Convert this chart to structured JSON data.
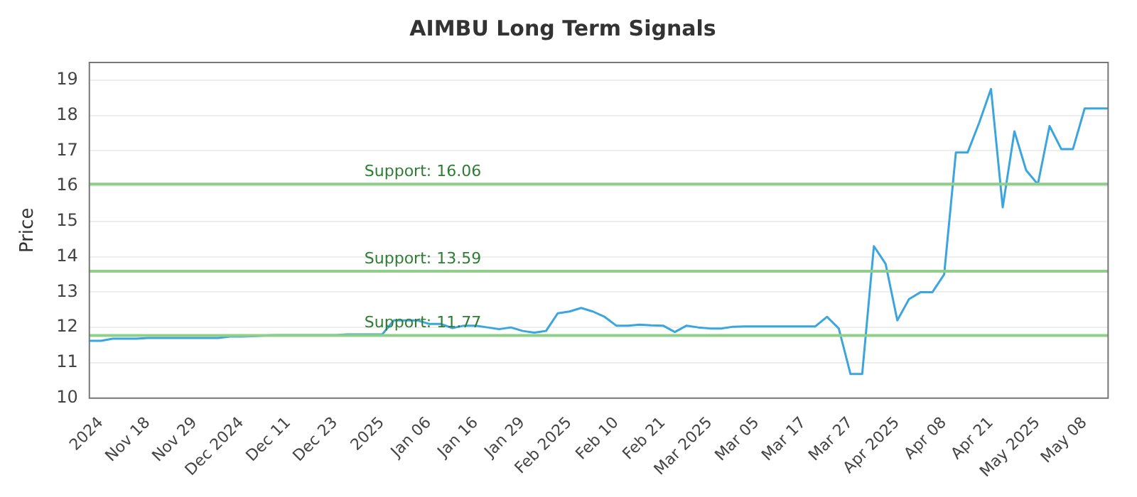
{
  "chart_data": {
    "type": "line",
    "title": "AIMBU Long Term Signals",
    "ylabel": "Price",
    "categories": [
      null,
      "2024",
      null,
      null,
      null,
      "Nov 18",
      null,
      null,
      null,
      "Nov 29",
      null,
      null,
      null,
      "Dec 2024",
      null,
      null,
      null,
      "Dec 11",
      null,
      null,
      null,
      "Dec 23",
      null,
      null,
      null,
      "2025",
      null,
      null,
      null,
      "Jan 06",
      null,
      null,
      null,
      "Jan 16",
      null,
      null,
      null,
      "Jan 29",
      null,
      null,
      null,
      "Feb 2025",
      null,
      null,
      null,
      "Feb 10",
      null,
      null,
      null,
      "Feb 21",
      null,
      null,
      null,
      "Mar 2025",
      null,
      null,
      null,
      "Mar 05",
      null,
      null,
      null,
      "Mar 17",
      null,
      null,
      null,
      "Mar 27",
      null,
      null,
      null,
      "Apr 2025",
      null,
      null,
      null,
      "Apr 08",
      null,
      null,
      null,
      "Apr 21",
      null,
      null,
      null,
      "May 2025",
      null,
      null,
      null,
      "May 08",
      null,
      null
    ],
    "series": [
      {
        "color": "#3aa6dd",
        "values": [
          11.62,
          11.62,
          11.68,
          11.68,
          11.68,
          11.7,
          11.7,
          11.7,
          11.7,
          11.7,
          11.7,
          11.7,
          11.74,
          11.74,
          11.75,
          11.77,
          11.78,
          11.78,
          11.78,
          11.78,
          11.78,
          11.78,
          11.8,
          11.8,
          11.8,
          11.8,
          12.2,
          12.2,
          12.2,
          12.1,
          12.1,
          11.98,
          12.05,
          12.05,
          12.0,
          11.95,
          12.0,
          11.9,
          11.85,
          11.9,
          12.4,
          12.45,
          12.55,
          12.45,
          12.3,
          12.05,
          12.05,
          12.08,
          12.06,
          12.05,
          11.87,
          12.05,
          12.0,
          11.97,
          11.97,
          12.02,
          12.03,
          12.03,
          12.03,
          12.03,
          12.03,
          12.03,
          12.03,
          12.3,
          11.97,
          10.68,
          10.68,
          14.3,
          13.8,
          12.2,
          12.8,
          13.0,
          13.0,
          13.5,
          16.95,
          16.95,
          17.8,
          18.75,
          15.4,
          17.55,
          16.45,
          16.05,
          17.7,
          17.05,
          17.05,
          18.2,
          18.2,
          18.2
        ]
      }
    ],
    "ylim": [
      10,
      19.5
    ],
    "yticks": [
      10,
      11,
      12,
      13,
      14,
      15,
      16,
      17,
      18,
      19
    ],
    "grid": "y",
    "marker": "none",
    "line_style": "solid",
    "legend": false,
    "ref_lines": [
      {
        "axis": "y",
        "value": 16.06,
        "label": "Support: 16.06",
        "color": "#8fcf8a"
      },
      {
        "axis": "y",
        "value": 13.59,
        "label": "Support: 13.59",
        "color": "#8fcf8a"
      },
      {
        "axis": "y",
        "value": 11.77,
        "label": "Support: 11.77",
        "color": "#8fcf8a"
      }
    ]
  }
}
